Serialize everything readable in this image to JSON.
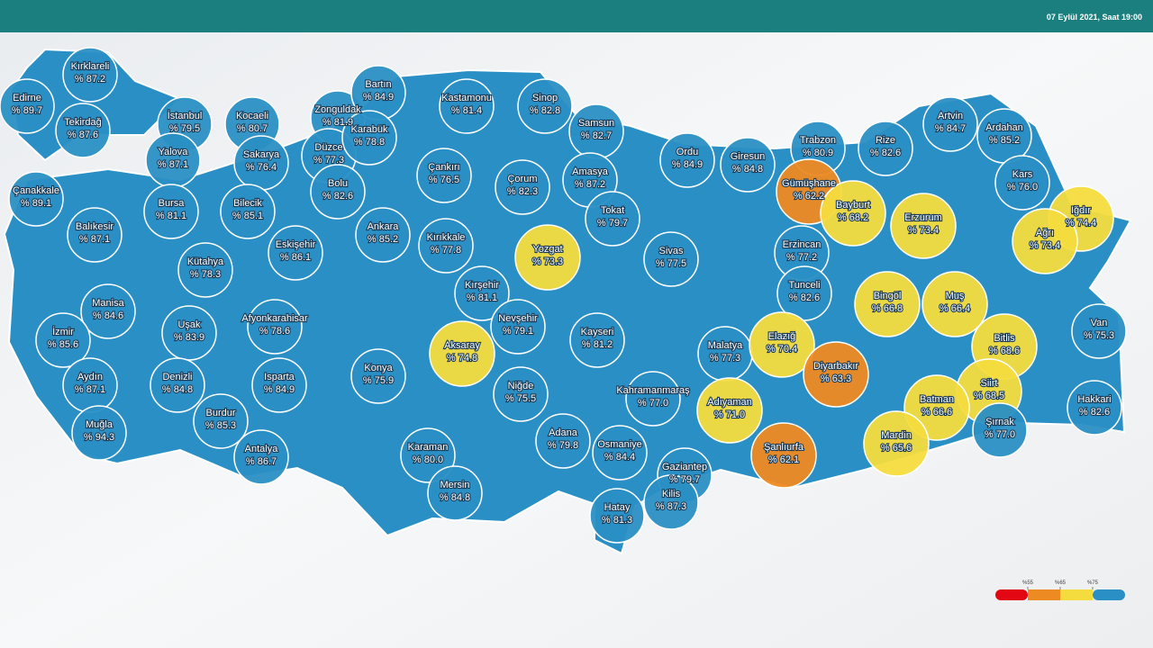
{
  "header": {
    "date": "07 Eylül 2021, Saat 19:00"
  },
  "legend": {
    "thresholds": [
      {
        "value": 55,
        "label": "%55"
      },
      {
        "value": 65,
        "label": "%65"
      },
      {
        "value": 75,
        "label": "%75"
      }
    ],
    "colors": [
      "#e30613",
      "#ee8a22",
      "#f5dc3e",
      "#2a8fc4"
    ]
  },
  "provinces": [
    {
      "name": "Kırklareli",
      "value": 87.2,
      "value_label": "% 87.2"
    },
    {
      "name": "Edirne",
      "value": 89.7,
      "value_label": "% 89.7"
    },
    {
      "name": "Tekirdağ",
      "value": 87.6,
      "value_label": "% 87.6"
    },
    {
      "name": "İstanbul",
      "value": 79.5,
      "value_label": "% 79.5"
    },
    {
      "name": "Kocaeli",
      "value": 80.7,
      "value_label": "% 80.7"
    },
    {
      "name": "Zonguldak",
      "value": 81.9,
      "value_label": "% 81.9"
    },
    {
      "name": "Bartın",
      "value": 84.9,
      "value_label": "% 84.9"
    },
    {
      "name": "Kastamonu",
      "value": 81.4,
      "value_label": "% 81.4"
    },
    {
      "name": "Sinop",
      "value": 82.8,
      "value_label": "% 82.8"
    },
    {
      "name": "Samsun",
      "value": 82.7,
      "value_label": "% 82.7"
    },
    {
      "name": "Yalova",
      "value": 87.1,
      "value_label": "% 87.1"
    },
    {
      "name": "Sakarya",
      "value": 76.4,
      "value_label": "% 76.4"
    },
    {
      "name": "Düzce",
      "value": 77.3,
      "value_label": "% 77.3"
    },
    {
      "name": "Karabük",
      "value": 78.8,
      "value_label": "% 78.8"
    },
    {
      "name": "Çanakkale",
      "value": 89.1,
      "value_label": "% 89.1"
    },
    {
      "name": "Bursa",
      "value": 81.1,
      "value_label": "% 81.1"
    },
    {
      "name": "Bilecik",
      "value": 85.1,
      "value_label": "% 85.1"
    },
    {
      "name": "Bolu",
      "value": 82.6,
      "value_label": "% 82.6"
    },
    {
      "name": "Çankırı",
      "value": 76.5,
      "value_label": "% 76.5"
    },
    {
      "name": "Çorum",
      "value": 82.3,
      "value_label": "% 82.3"
    },
    {
      "name": "Amasya",
      "value": 87.2,
      "value_label": "% 87.2"
    },
    {
      "name": "Ordu",
      "value": 84.9,
      "value_label": "% 84.9"
    },
    {
      "name": "Giresun",
      "value": 84.8,
      "value_label": "% 84.8"
    },
    {
      "name": "Trabzon",
      "value": 80.9,
      "value_label": "% 80.9"
    },
    {
      "name": "Rize",
      "value": 82.6,
      "value_label": "% 82.6"
    },
    {
      "name": "Artvin",
      "value": 84.7,
      "value_label": "% 84.7"
    },
    {
      "name": "Ardahan",
      "value": 85.2,
      "value_label": "% 85.2"
    },
    {
      "name": "Kars",
      "value": 76.0,
      "value_label": "% 76.0"
    },
    {
      "name": "Gümüşhane",
      "value": 62.2,
      "value_label": "% 62.2"
    },
    {
      "name": "Bayburt",
      "value": 68.2,
      "value_label": "% 68.2"
    },
    {
      "name": "Erzurum",
      "value": 73.4,
      "value_label": "% 73.4"
    },
    {
      "name": "Iğdır",
      "value": 74.4,
      "value_label": "% 74.4"
    },
    {
      "name": "Ağrı",
      "value": 73.4,
      "value_label": "% 73.4"
    },
    {
      "name": "Balıkesir",
      "value": 87.1,
      "value_label": "% 87.1"
    },
    {
      "name": "Eskişehir",
      "value": 86.1,
      "value_label": "% 86.1"
    },
    {
      "name": "Ankara",
      "value": 85.2,
      "value_label": "% 85.2"
    },
    {
      "name": "Kırıkkale",
      "value": 77.8,
      "value_label": "% 77.8"
    },
    {
      "name": "Yozgat",
      "value": 73.3,
      "value_label": "% 73.3"
    },
    {
      "name": "Tokat",
      "value": 79.7,
      "value_label": "% 79.7"
    },
    {
      "name": "Sivas",
      "value": 77.5,
      "value_label": "% 77.5"
    },
    {
      "name": "Erzincan",
      "value": 77.2,
      "value_label": "% 77.2"
    },
    {
      "name": "Kütahya",
      "value": 78.3,
      "value_label": "% 78.3"
    },
    {
      "name": "Manisa",
      "value": 84.6,
      "value_label": "% 84.6"
    },
    {
      "name": "Kırşehir",
      "value": 81.1,
      "value_label": "% 81.1"
    },
    {
      "name": "Tunceli",
      "value": 82.6,
      "value_label": "% 82.6"
    },
    {
      "name": "Bingöl",
      "value": 66.8,
      "value_label": "% 66.8"
    },
    {
      "name": "Muş",
      "value": 66.4,
      "value_label": "% 66.4"
    },
    {
      "name": "Uşak",
      "value": 83.9,
      "value_label": "% 83.9"
    },
    {
      "name": "Afyonkarahisar",
      "value": 78.6,
      "value_label": "% 78.6"
    },
    {
      "name": "İzmir",
      "value": 85.6,
      "value_label": "% 85.6"
    },
    {
      "name": "Nevşehir",
      "value": 79.1,
      "value_label": "% 79.1"
    },
    {
      "name": "Kayseri",
      "value": 81.2,
      "value_label": "% 81.2"
    },
    {
      "name": "Aksaray",
      "value": 74.8,
      "value_label": "% 74.8"
    },
    {
      "name": "Malatya",
      "value": 77.3,
      "value_label": "% 77.3"
    },
    {
      "name": "Elazığ",
      "value": 70.4,
      "value_label": "% 70.4"
    },
    {
      "name": "Van",
      "value": 75.3,
      "value_label": "% 75.3"
    },
    {
      "name": "Bitlis",
      "value": 68.6,
      "value_label": "% 68.6"
    },
    {
      "name": "Diyarbakır",
      "value": 63.3,
      "value_label": "% 63.3"
    },
    {
      "name": "Aydın",
      "value": 87.1,
      "value_label": "% 87.1"
    },
    {
      "name": "Denizli",
      "value": 84.8,
      "value_label": "% 84.8"
    },
    {
      "name": "Isparta",
      "value": 84.9,
      "value_label": "% 84.9"
    },
    {
      "name": "Konya",
      "value": 75.9,
      "value_label": "% 75.9"
    },
    {
      "name": "Niğde",
      "value": 75.5,
      "value_label": "% 75.5"
    },
    {
      "name": "Kahramanmaraş",
      "value": 77.0,
      "value_label": "% 77.0"
    },
    {
      "name": "Siirt",
      "value": 68.5,
      "value_label": "% 68.5"
    },
    {
      "name": "Batman",
      "value": 66.6,
      "value_label": "% 66.6"
    },
    {
      "name": "Hakkari",
      "value": 82.6,
      "value_label": "% 82.6"
    },
    {
      "name": "Adıyaman",
      "value": 71.0,
      "value_label": "% 71.0"
    },
    {
      "name": "Burdur",
      "value": 85.3,
      "value_label": "% 85.3"
    },
    {
      "name": "Muğla",
      "value": 94.3,
      "value_label": "% 94.3"
    },
    {
      "name": "Şırnak",
      "value": 77.0,
      "value_label": "% 77.0"
    },
    {
      "name": "Mardin",
      "value": 65.6,
      "value_label": "% 65.6"
    },
    {
      "name": "Şanlıurfa",
      "value": 62.1,
      "value_label": "% 62.1"
    },
    {
      "name": "Adana",
      "value": 79.8,
      "value_label": "% 79.8"
    },
    {
      "name": "Osmaniye",
      "value": 84.4,
      "value_label": "% 84.4"
    },
    {
      "name": "Antalya",
      "value": 86.7,
      "value_label": "% 86.7"
    },
    {
      "name": "Karaman",
      "value": 80.0,
      "value_label": "% 80.0"
    },
    {
      "name": "Gaziantep",
      "value": 79.7,
      "value_label": "% 79.7"
    },
    {
      "name": "Mersin",
      "value": 84.8,
      "value_label": "% 84.8"
    },
    {
      "name": "Kilis",
      "value": 87.3,
      "value_label": "% 87.3"
    },
    {
      "name": "Hatay",
      "value": 81.3,
      "value_label": "% 81.3"
    }
  ]
}
